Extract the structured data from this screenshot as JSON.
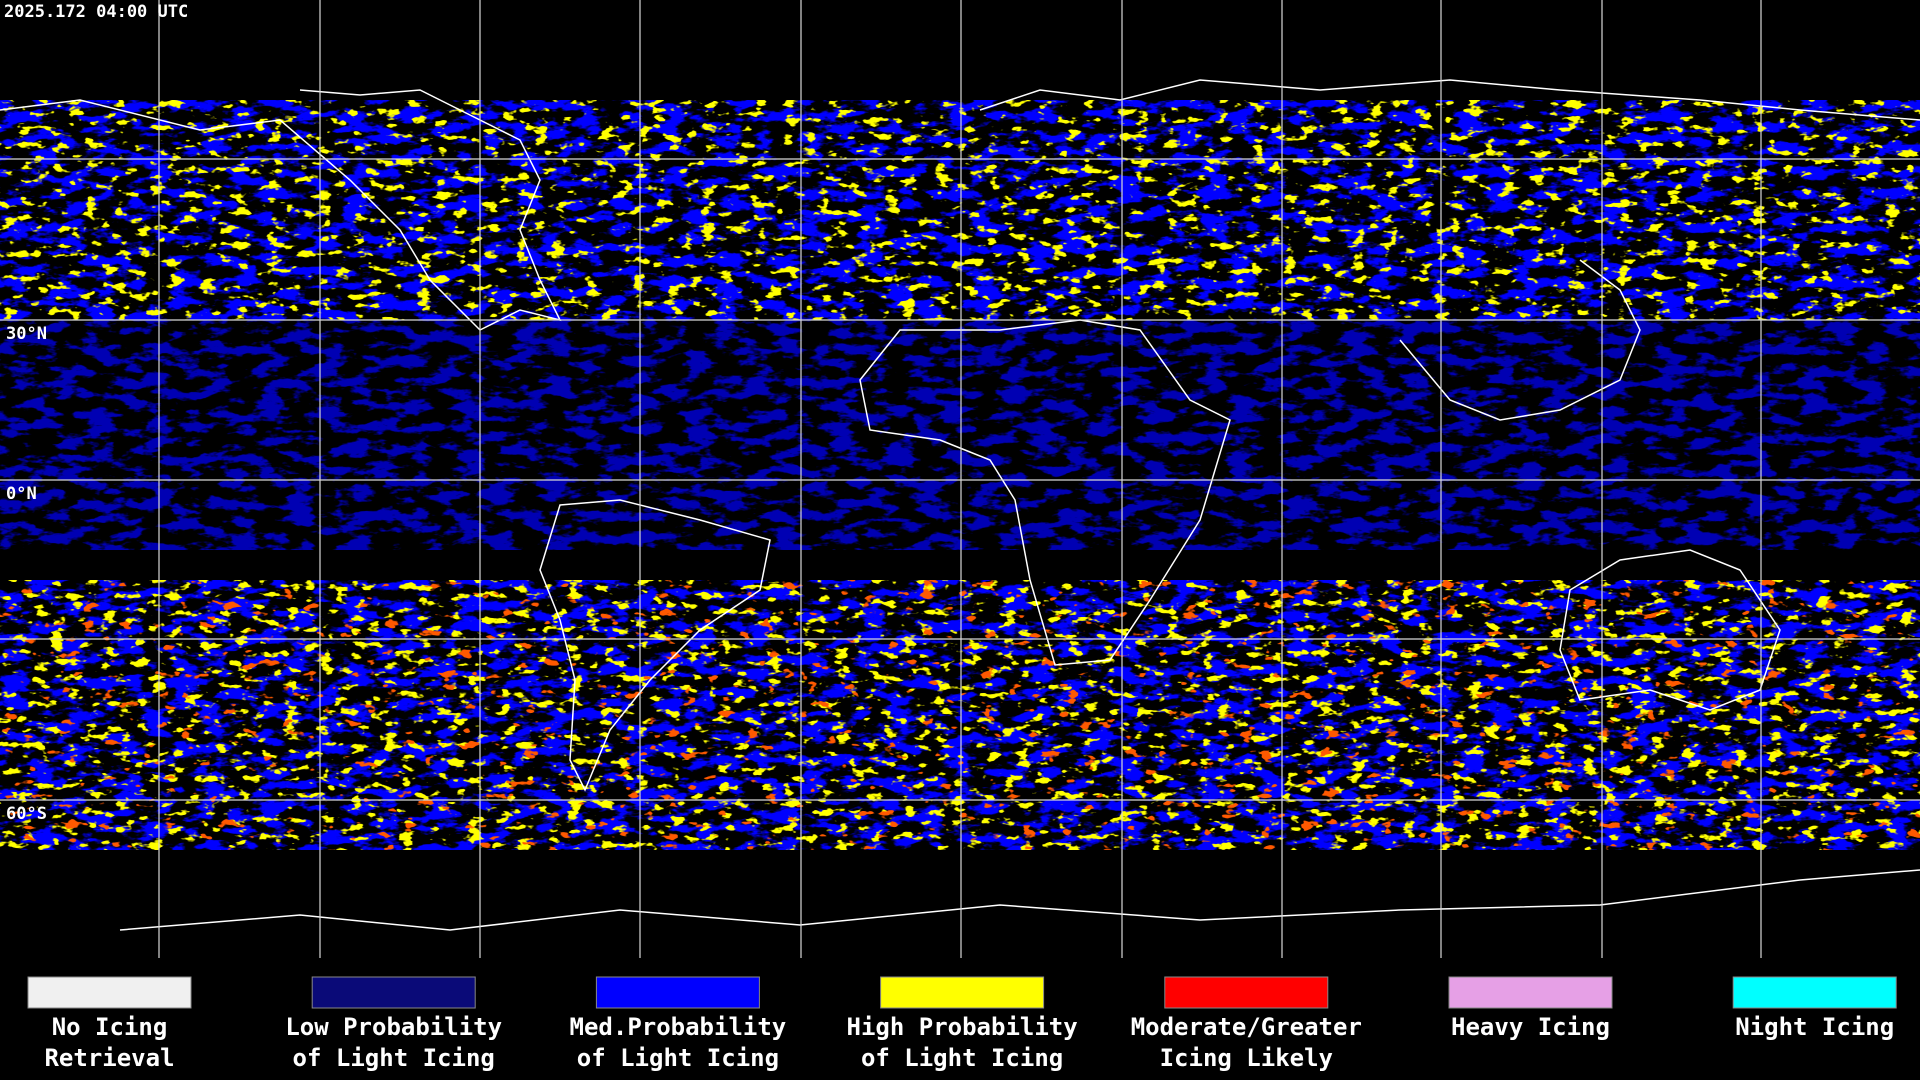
{
  "header": {
    "timestamp": "2025.172 04:00 UTC"
  },
  "map": {
    "latitude_labels": [
      "30°N",
      "0°N",
      "60°S"
    ]
  },
  "legend": {
    "items": [
      {
        "label_lines": [
          "No Icing",
          "Retrieval"
        ],
        "color": "#f0f0f0"
      },
      {
        "label_lines": [
          "Low Probability",
          "of Light Icing"
        ],
        "color": "#0a0a78"
      },
      {
        "label_lines": [
          "Med.Probability",
          "of Light Icing"
        ],
        "color": "#0000ff"
      },
      {
        "label_lines": [
          "High Probability",
          "of Light Icing"
        ],
        "color": "#ffff00"
      },
      {
        "label_lines": [
          "Moderate/Greater",
          "Icing Likely"
        ],
        "color": "#ff0000"
      },
      {
        "label_lines": [
          "Heavy Icing"
        ],
        "color": "#e6a0e6"
      },
      {
        "label_lines": [
          "Night Icing"
        ],
        "color": "#00ffff"
      }
    ]
  }
}
